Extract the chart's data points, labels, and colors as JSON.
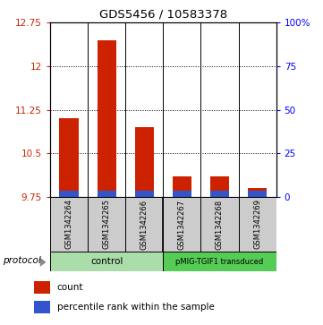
{
  "title": "GDS5456 / 10583378",
  "samples": [
    "GSM1342264",
    "GSM1342265",
    "GSM1342266",
    "GSM1342267",
    "GSM1342268",
    "GSM1342269"
  ],
  "count_values": [
    11.1,
    12.45,
    10.95,
    10.1,
    10.1,
    9.9
  ],
  "base_value": 9.75,
  "ylim_left": [
    9.75,
    12.75
  ],
  "yticks_left": [
    9.75,
    10.5,
    11.25,
    12.0,
    12.75
  ],
  "ytick_labels_left": [
    "9.75",
    "10.5",
    "11.25",
    "12",
    "12.75"
  ],
  "ylim_right": [
    0,
    100
  ],
  "yticks_right": [
    0,
    25,
    50,
    75,
    100
  ],
  "ytick_labels_right": [
    "0",
    "25",
    "50",
    "75",
    "100%"
  ],
  "bar_color_red": "#cc2200",
  "bar_color_blue": "#3355cc",
  "blue_bar_height": 0.1,
  "group1_label": "control",
  "group1_color": "#aaddaa",
  "group2_label": "pMIG-TGIF1 transduced",
  "group2_color": "#55cc55",
  "protocol_label": "protocol",
  "label_bg": "#cccccc",
  "fig_width": 3.61,
  "fig_height": 3.63,
  "dpi": 100
}
